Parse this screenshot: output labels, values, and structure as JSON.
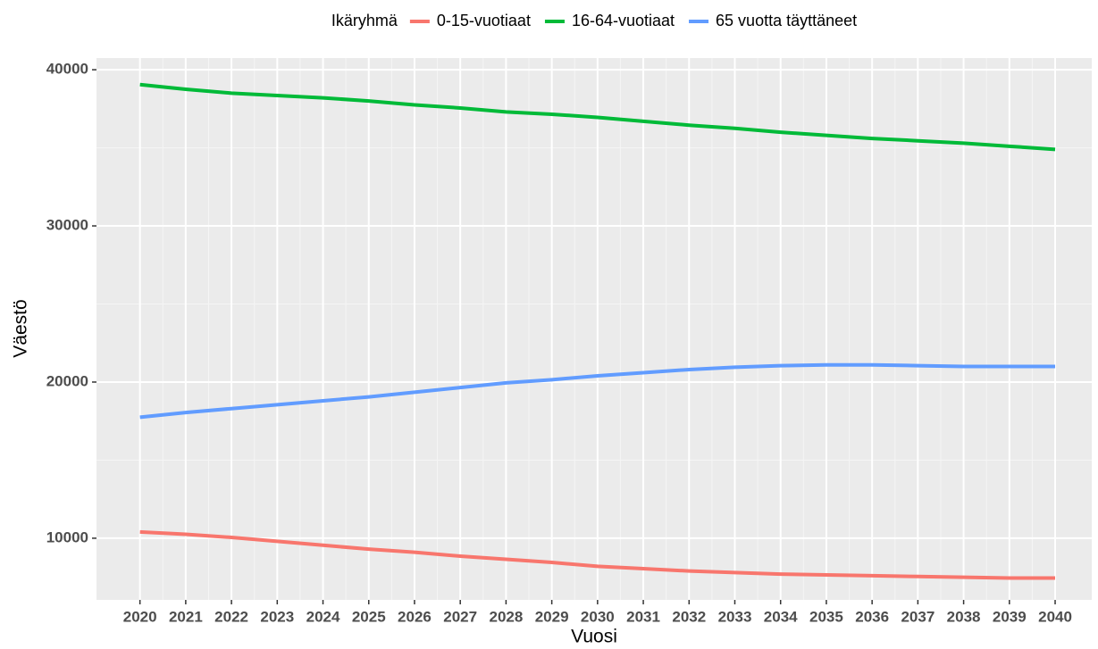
{
  "chart_data": {
    "type": "line",
    "legend_title": "Ikäryhmä",
    "legend_position": "top",
    "x_label": "Vuosi",
    "y_label": "Väestö",
    "x": [
      2020,
      2021,
      2022,
      2023,
      2024,
      2025,
      2026,
      2027,
      2028,
      2029,
      2030,
      2031,
      2032,
      2033,
      2034,
      2035,
      2036,
      2037,
      2038,
      2039,
      2040
    ],
    "series": [
      {
        "name": "0-15-vuotiaat",
        "color": "#f8766d",
        "values": [
          10400,
          10250,
          10050,
          9800,
          9550,
          9300,
          9100,
          8850,
          8650,
          8450,
          8200,
          8050,
          7900,
          7800,
          7700,
          7650,
          7600,
          7550,
          7500,
          7450,
          7450
        ]
      },
      {
        "name": "16-64-vuotiaat",
        "color": "#00ba38",
        "values": [
          39050,
          38750,
          38500,
          38350,
          38200,
          38000,
          37750,
          37550,
          37300,
          37150,
          36950,
          36700,
          36450,
          36250,
          36000,
          35800,
          35600,
          35450,
          35300,
          35100,
          34900
        ]
      },
      {
        "name": "65 vuotta täyttäneet",
        "color": "#619cff",
        "values": [
          17750,
          18050,
          18300,
          18550,
          18800,
          19050,
          19350,
          19650,
          19950,
          20150,
          20400,
          20600,
          20800,
          20950,
          21050,
          21100,
          21100,
          21050,
          21000,
          21000,
          21000
        ]
      }
    ],
    "xlim": [
      2019.05,
      2040.8
    ],
    "ylim": [
      6050,
      40750
    ],
    "xticks": [
      2020,
      2021,
      2022,
      2023,
      2024,
      2025,
      2026,
      2027,
      2028,
      2029,
      2030,
      2031,
      2032,
      2033,
      2034,
      2035,
      2036,
      2037,
      2038,
      2039,
      2040
    ],
    "yticks": [
      10000,
      20000,
      30000,
      40000
    ],
    "grid": true
  }
}
